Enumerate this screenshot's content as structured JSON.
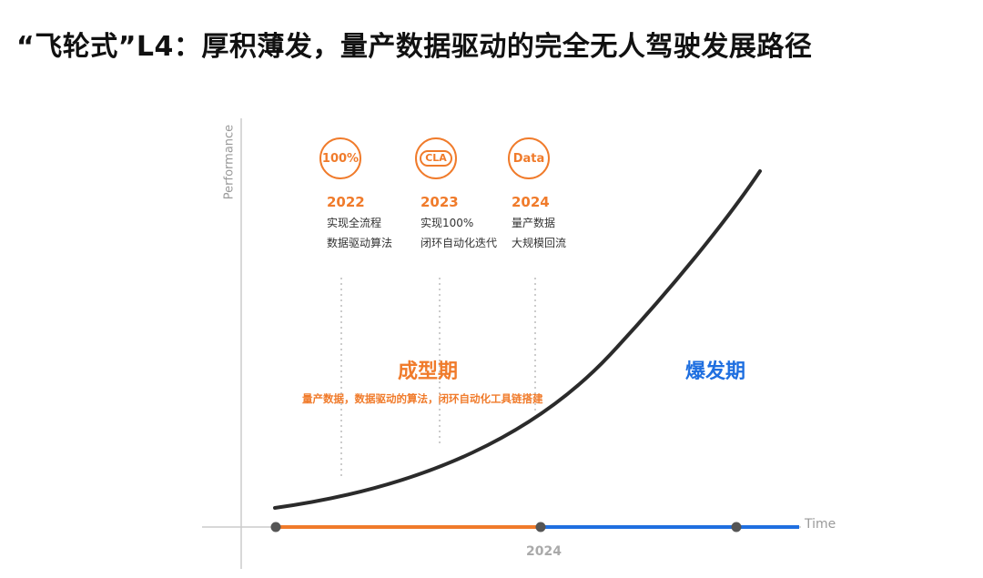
{
  "title": "“飞轮式”L4：厚积薄发，量产数据驱动的完全无人驾驶发展路径",
  "axes": {
    "y_label": "Performance",
    "x_label": "Time",
    "x_tick": "2024"
  },
  "milestones": [
    {
      "icon": "percent-badge-icon",
      "badge": "100%",
      "year": "2022",
      "line1": "实现全流程",
      "line2": "数据驱动算法"
    },
    {
      "icon": "cla-cycle-icon",
      "badge": "CLA",
      "year": "2023",
      "line1": "实现100%",
      "line2": "闭环自动化迭代"
    },
    {
      "icon": "data-badge-icon",
      "badge": "Data",
      "year": "2024",
      "line1": "量产数据",
      "line2": "大规模回流"
    }
  ],
  "phases": {
    "formation": {
      "label": "成型期",
      "subtitle": "量产数据，数据驱动的算法，闭环自动化工具链搭建",
      "color": "#f07b2b"
    },
    "explosion": {
      "label": "爆发期",
      "color": "#1f6fe0"
    }
  },
  "colors": {
    "accent_orange": "#f07b2b",
    "accent_blue": "#1f6fe0",
    "curve": "#2b2b2b",
    "axis": "#cccccc"
  }
}
